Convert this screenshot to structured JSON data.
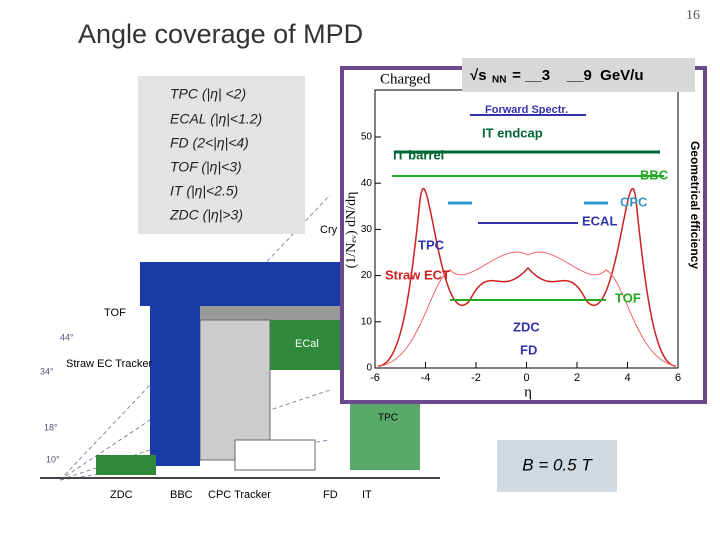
{
  "page_number": "16",
  "title": "Angle coverage of MPD",
  "energy": {
    "prefix": "√s",
    "subscript": "NN",
    "rest": " = __3    __9  GeV/u"
  },
  "coverage": [
    "TPC  (|η| <2)",
    "ECAL (|η|<1.2)",
    "FD (2<|η|<4)",
    "TOF (|η|<3)",
    "IT (|η|<2.5)",
    "ZDC (|η|>3)"
  ],
  "field": "B = 0.5 T",
  "detector": {
    "labels": [
      "TOF",
      "Straw EC Tracker",
      "ZDC",
      "BBC",
      "CPC Tracker",
      "FD",
      "IT",
      "ECal",
      "TPC",
      "Cry"
    ],
    "angles": [
      "44°",
      "34°",
      "18°",
      "10°"
    ]
  },
  "plot": {
    "title": "Charged",
    "y_label": "(1/Nₑᵥ) dN/dη",
    "x_label": "η",
    "right_label": "Geometrical efficiency",
    "xticks": [
      "-6",
      "-4",
      "-2",
      "0",
      "2",
      "4",
      "6"
    ],
    "yticks": [
      "0",
      "10",
      "20",
      "30",
      "40",
      "50"
    ],
    "curve_labels": [
      "Forward Spectr.",
      "IT endcap",
      "IT barrel",
      "BBC",
      "CPC",
      "ECAL",
      "TPC",
      "Straw ECT",
      "TOF",
      "ZDC",
      "FD"
    ]
  }
}
